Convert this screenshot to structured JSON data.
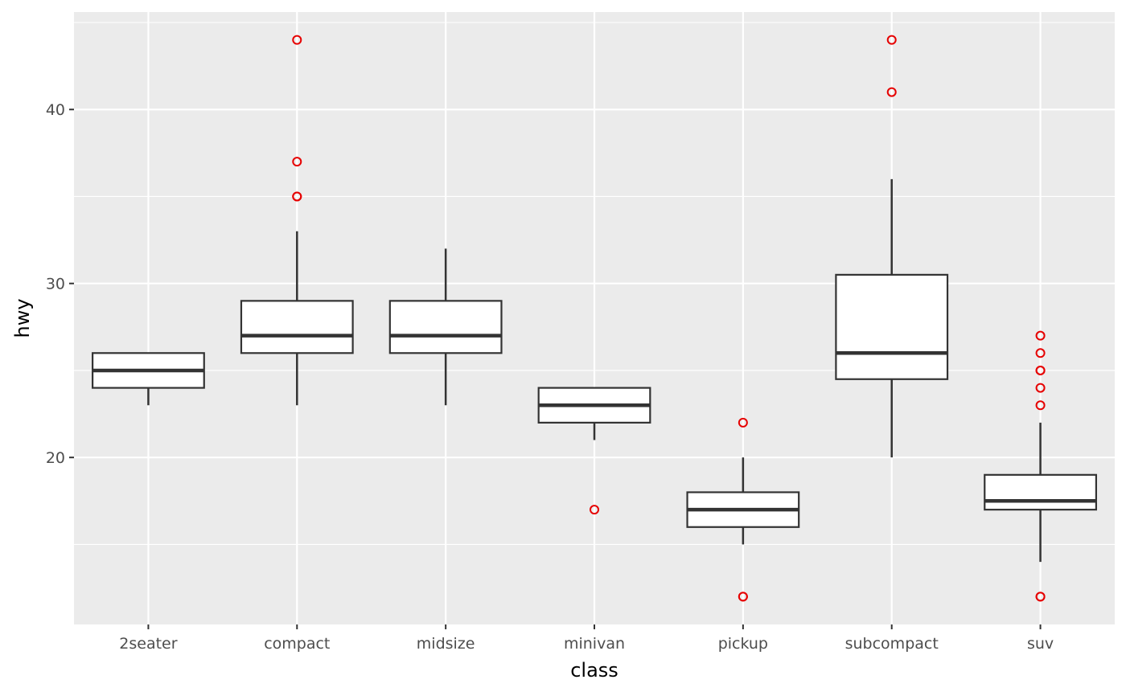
{
  "colors": {
    "panel": "#ebebeb",
    "grid": "#ffffff",
    "box_line": "#333333",
    "box_fill": "#ffffff",
    "outlier": "#e60000",
    "tick_text": "#4d4d4d",
    "tick_mark": "#333333"
  },
  "chart_data": {
    "type": "boxplot",
    "xlabel": "class",
    "ylabel": "hwy",
    "ylim": [
      10.4,
      45.6
    ],
    "yticks": [
      20,
      30,
      40
    ],
    "grid": true,
    "categories": [
      "2seater",
      "compact",
      "midsize",
      "minivan",
      "pickup",
      "subcompact",
      "suv"
    ],
    "boxes": [
      {
        "category": "2seater",
        "whisker_low": 23,
        "q1": 24,
        "median": 25,
        "q3": 26,
        "whisker_high": 26,
        "outliers": []
      },
      {
        "category": "compact",
        "whisker_low": 23,
        "q1": 26,
        "median": 27,
        "q3": 29,
        "whisker_high": 33,
        "outliers": [
          35,
          35,
          37,
          44
        ]
      },
      {
        "category": "midsize",
        "whisker_low": 23,
        "q1": 26,
        "median": 27,
        "q3": 29,
        "whisker_high": 32,
        "outliers": []
      },
      {
        "category": "minivan",
        "whisker_low": 21,
        "q1": 22,
        "median": 23,
        "q3": 24,
        "whisker_high": 24,
        "outliers": [
          17
        ]
      },
      {
        "category": "pickup",
        "whisker_low": 15,
        "q1": 16,
        "median": 17,
        "q3": 18,
        "whisker_high": 20,
        "outliers": [
          12,
          12,
          22
        ]
      },
      {
        "category": "subcompact",
        "whisker_low": 20,
        "q1": 24.5,
        "median": 26,
        "q3": 30.5,
        "whisker_high": 36,
        "outliers": [
          41,
          44
        ]
      },
      {
        "category": "suv",
        "whisker_low": 14,
        "q1": 17,
        "median": 17.5,
        "q3": 19,
        "whisker_high": 22,
        "outliers": [
          12,
          12,
          23,
          24,
          25,
          25,
          26,
          27
        ]
      }
    ]
  }
}
